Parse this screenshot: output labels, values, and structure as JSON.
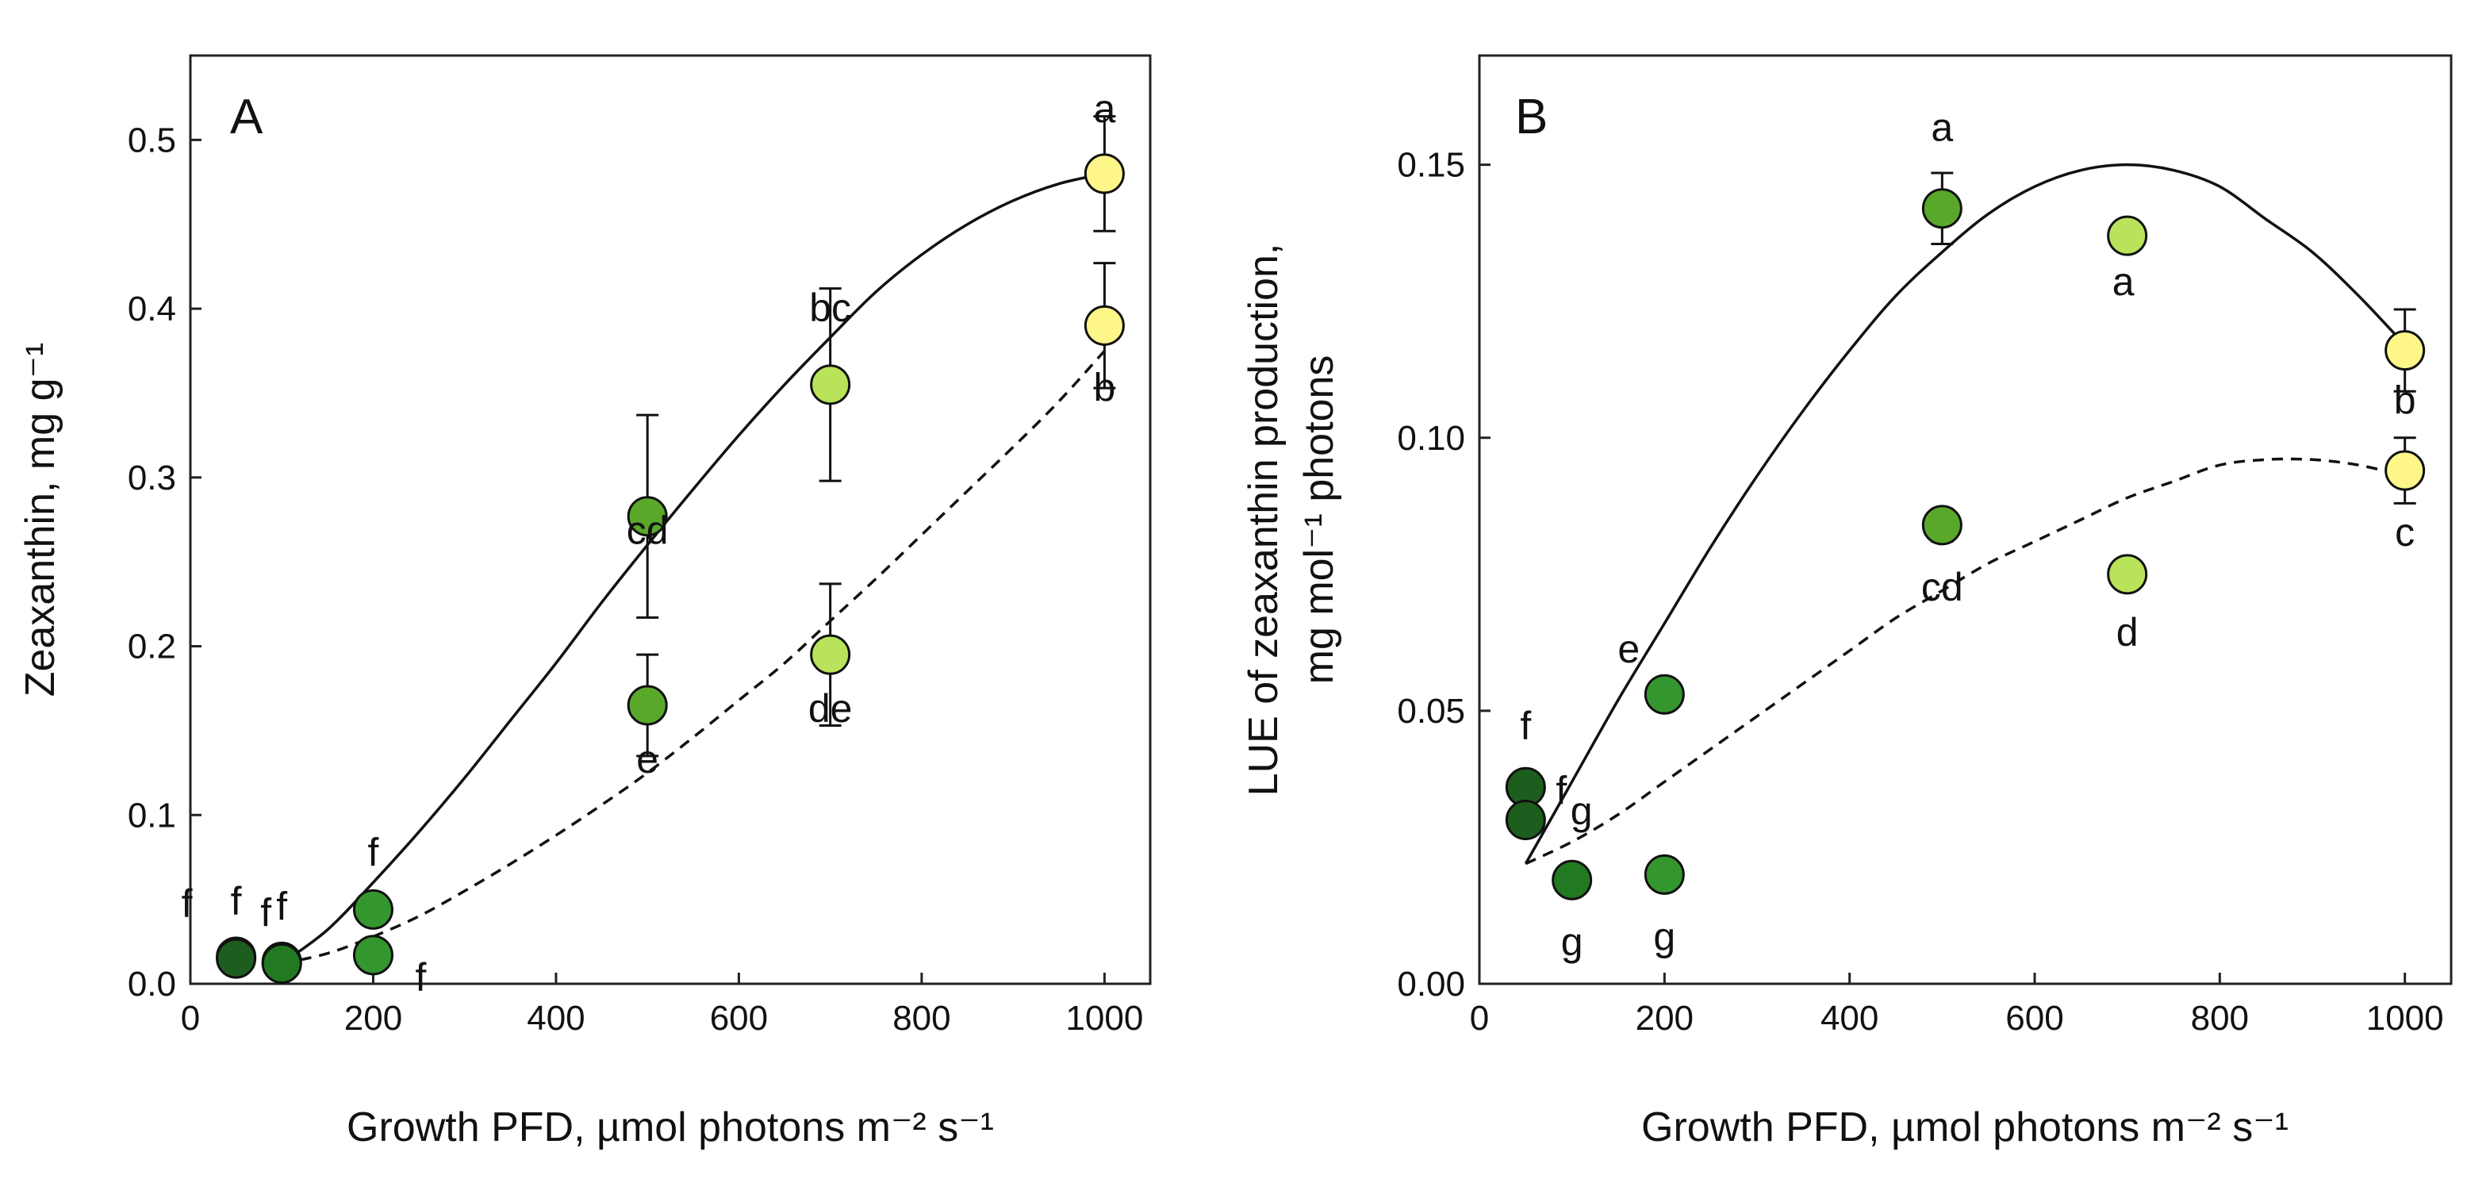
{
  "chart_data": [
    {
      "type": "scatter",
      "panel_label": "A",
      "xlabel": "Growth PFD, µmol photons m⁻² s⁻¹",
      "ylabel": "Zeaxanthin, mg g⁻¹",
      "xlim": [
        0,
        1050
      ],
      "ylim": [
        0,
        0.55
      ],
      "xticks": [
        "0",
        "200",
        "400",
        "600",
        "800",
        "1000"
      ],
      "yticks": [
        "0.0",
        "0.1",
        "0.2",
        "0.3",
        "0.4",
        "0.5"
      ],
      "grid": false,
      "series": [
        {
          "line_style": "solid",
          "curve_x": [
            100,
            150,
            200,
            250,
            300,
            350,
            400,
            450,
            500,
            550,
            600,
            650,
            700,
            750,
            800,
            850,
            900,
            950,
            1000
          ],
          "curve_y": [
            0.012,
            0.032,
            0.06,
            0.09,
            0.122,
            0.156,
            0.19,
            0.226,
            0.26,
            0.293,
            0.325,
            0.355,
            0.383,
            0.41,
            0.432,
            0.45,
            0.464,
            0.474,
            0.48
          ],
          "points": [
            {
              "x": 50,
              "y": 0.016,
              "err": 0,
              "label": "f",
              "color": "#1d5d1d"
            },
            {
              "x": 100,
              "y": 0.013,
              "err": 0,
              "label": "f",
              "color": "#217a21"
            },
            {
              "x": 200,
              "y": 0.044,
              "err": 0,
              "label": "f",
              "color": "#34962f"
            },
            {
              "x": 500,
              "y": 0.277,
              "err": 0.06,
              "label": "cd",
              "color": "#5aa82a"
            },
            {
              "x": 700,
              "y": 0.355,
              "err": 0.057,
              "label": "bc",
              "color": "#b9e35a"
            },
            {
              "x": 1000,
              "y": 0.48,
              "err": 0.034,
              "label": "a",
              "color": "#fff68a"
            }
          ]
        },
        {
          "line_style": "dashed",
          "curve_x": [
            100,
            150,
            200,
            250,
            300,
            350,
            400,
            450,
            500,
            550,
            600,
            650,
            700,
            750,
            800,
            850,
            900,
            950,
            1000
          ],
          "curve_y": [
            0.012,
            0.018,
            0.028,
            0.04,
            0.055,
            0.071,
            0.088,
            0.106,
            0.125,
            0.146,
            0.168,
            0.19,
            0.215,
            0.24,
            0.266,
            0.292,
            0.318,
            0.345,
            0.375
          ],
          "points": [
            {
              "x": 50,
              "y": 0.015,
              "err": 0,
              "label": "f",
              "color": "#1d5d1d"
            },
            {
              "x": 100,
              "y": 0.012,
              "err": 0,
              "label": "f",
              "color": "#217a21"
            },
            {
              "x": 200,
              "y": 0.017,
              "err": 0,
              "label": "f",
              "color": "#34962f"
            },
            {
              "x": 500,
              "y": 0.165,
              "err": 0.03,
              "label": "e",
              "color": "#5aa82a"
            },
            {
              "x": 700,
              "y": 0.195,
              "err": 0.042,
              "label": "de",
              "color": "#b9e35a"
            },
            {
              "x": 1000,
              "y": 0.39,
              "err": 0.037,
              "label": "b",
              "color": "#fff68a"
            }
          ]
        }
      ]
    },
    {
      "type": "scatter",
      "panel_label": "B",
      "xlabel": "Growth PFD, µmol photons m⁻² s⁻¹",
      "ylabel_line1": "LUE of zeaxanthin production,",
      "ylabel_line2": "mg mol⁻¹ photons",
      "xlim": [
        0,
        1050
      ],
      "ylim": [
        0,
        0.17
      ],
      "xticks": [
        "0",
        "200",
        "400",
        "600",
        "800",
        "1000"
      ],
      "yticks": [
        "0.00",
        "0.05",
        "0.10",
        "0.15"
      ],
      "grid": false,
      "series": [
        {
          "line_style": "solid",
          "curve_x": [
            50,
            100,
            150,
            200,
            250,
            300,
            350,
            400,
            450,
            500,
            550,
            600,
            650,
            700,
            750,
            800,
            850,
            900,
            950,
            1000
          ],
          "curve_y": [
            0.022,
            0.037,
            0.052,
            0.066,
            0.08,
            0.093,
            0.105,
            0.116,
            0.126,
            0.134,
            0.141,
            0.146,
            0.149,
            0.15,
            0.149,
            0.146,
            0.14,
            0.134,
            0.126,
            0.117
          ],
          "points": [
            {
              "x": 50,
              "y": 0.036,
              "err": 0,
              "label": "f",
              "color": "#1d5d1d"
            },
            {
              "x": 200,
              "y": 0.053,
              "err": 0,
              "label": "e",
              "color": "#34962f"
            },
            {
              "x": 500,
              "y": 0.142,
              "err": 0.0065,
              "label": "a",
              "color": "#5aa82a"
            },
            {
              "x": 700,
              "y": 0.137,
              "err": 0,
              "label": "a",
              "color": "#b9e35a"
            },
            {
              "x": 1000,
              "y": 0.116,
              "err": 0.0075,
              "label": "b",
              "color": "#fff68a"
            }
          ]
        },
        {
          "line_style": "dashed",
          "curve_x": [
            50,
            100,
            150,
            200,
            250,
            300,
            350,
            400,
            450,
            500,
            550,
            600,
            650,
            700,
            750,
            800,
            850,
            900,
            950,
            1000
          ],
          "curve_y": [
            0.022,
            0.026,
            0.031,
            0.037,
            0.043,
            0.049,
            0.055,
            0.061,
            0.067,
            0.072,
            0.077,
            0.081,
            0.085,
            0.089,
            0.092,
            0.095,
            0.096,
            0.096,
            0.095,
            0.093
          ],
          "points": [
            {
              "x": 50,
              "y": 0.03,
              "err": 0,
              "label": "f",
              "color": "#1d5d1d"
            },
            {
              "x": 100,
              "y": 0.019,
              "err": 0,
              "label": "g",
              "color": "#217a21"
            },
            {
              "x": 200,
              "y": 0.02,
              "err": 0,
              "label": "g",
              "color": "#34962f"
            },
            {
              "x": 500,
              "y": 0.084,
              "err": 0.003,
              "label": "cd",
              "color": "#5aa82a"
            },
            {
              "x": 700,
              "y": 0.075,
              "err": 0,
              "label": "d",
              "color": "#b9e35a"
            },
            {
              "x": 1000,
              "y": 0.094,
              "err": 0.006,
              "label": "c",
              "color": "#fff68a"
            }
          ]
        }
      ],
      "extra_labels": [
        {
          "x": 100,
          "y": 0.019,
          "label": "g"
        }
      ]
    }
  ]
}
